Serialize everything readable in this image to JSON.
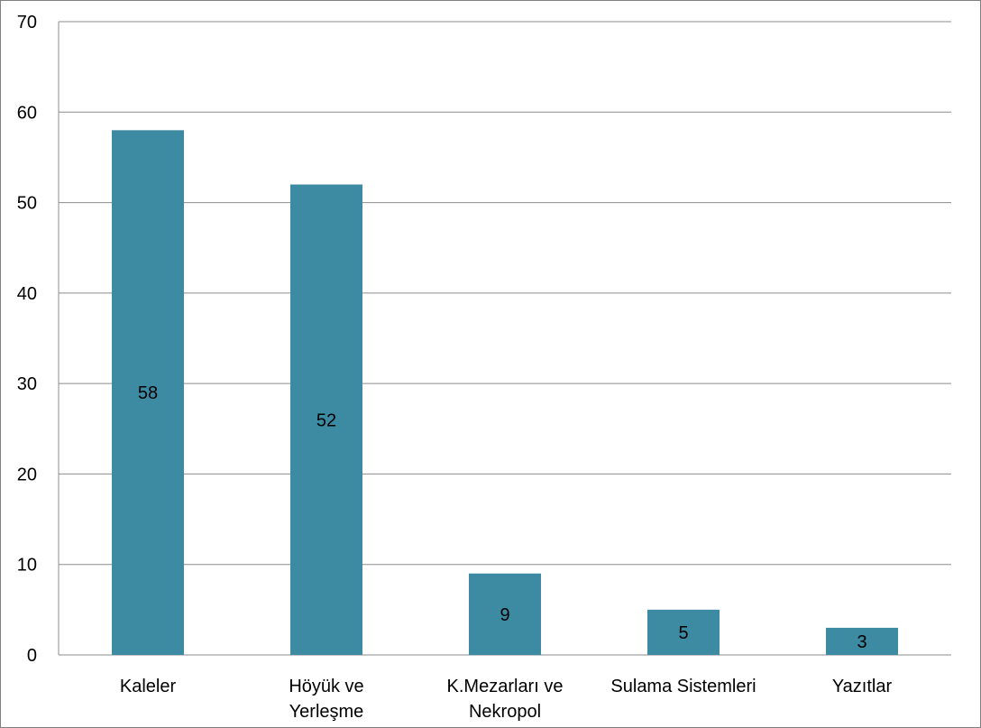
{
  "chart_data": {
    "type": "bar",
    "categories": [
      [
        "Kaleler"
      ],
      [
        "Höyük ve",
        "Yerleşme"
      ],
      [
        "K.Mezarları ve",
        "Nekropol"
      ],
      [
        "Sulama Sistemleri"
      ],
      [
        "Yazıtlar"
      ]
    ],
    "values": [
      58,
      52,
      9,
      5,
      3
    ],
    "ylim": [
      0,
      70
    ],
    "yticks": [
      0,
      10,
      20,
      30,
      40,
      50,
      60,
      70
    ],
    "grid": true,
    "legend": "none",
    "title": "",
    "xlabel": "",
    "ylabel": "",
    "colors": {
      "bar": "#3D8AA3",
      "grid": "#8c8c8c",
      "axis": "#8c8c8c"
    }
  }
}
